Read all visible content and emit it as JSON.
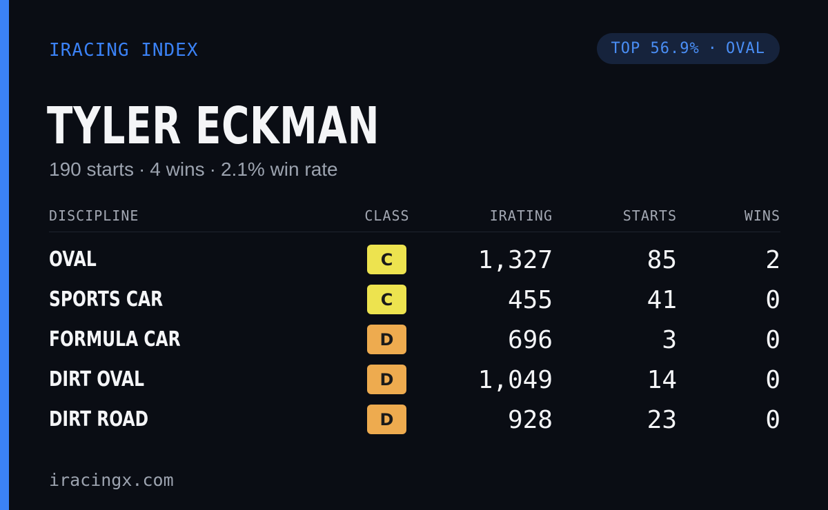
{
  "brand": "IRACING INDEX",
  "rank": {
    "label": "TOP 56.9%",
    "separator": "·",
    "discipline": "OVAL"
  },
  "player": {
    "name": "TYLER ECKMAN",
    "starts": "190 starts",
    "wins": "4 wins",
    "win_rate": "2.1% win rate",
    "separator": "·"
  },
  "table": {
    "headers": {
      "discipline": "DISCIPLINE",
      "class": "CLASS",
      "irating": "IRATING",
      "starts": "STARTS",
      "wins": "WINS"
    },
    "rows": [
      {
        "discipline": "OVAL",
        "class": "C",
        "class_color": "#ede34f",
        "irating": "1,327",
        "starts": "85",
        "wins": "2"
      },
      {
        "discipline": "SPORTS CAR",
        "class": "C",
        "class_color": "#ede34f",
        "irating": "455",
        "starts": "41",
        "wins": "0"
      },
      {
        "discipline": "FORMULA CAR",
        "class": "D",
        "class_color": "#eeab4f",
        "irating": "696",
        "starts": "3",
        "wins": "0"
      },
      {
        "discipline": "DIRT OVAL",
        "class": "D",
        "class_color": "#eeab4f",
        "irating": "1,049",
        "starts": "14",
        "wins": "0"
      },
      {
        "discipline": "DIRT ROAD",
        "class": "D",
        "class_color": "#eeab4f",
        "irating": "928",
        "starts": "23",
        "wins": "0"
      }
    ]
  },
  "footer": "iracingx.com",
  "colors": {
    "background": "#0a0d14",
    "accent": "#3b82f6",
    "pill_background": "#16233c"
  }
}
